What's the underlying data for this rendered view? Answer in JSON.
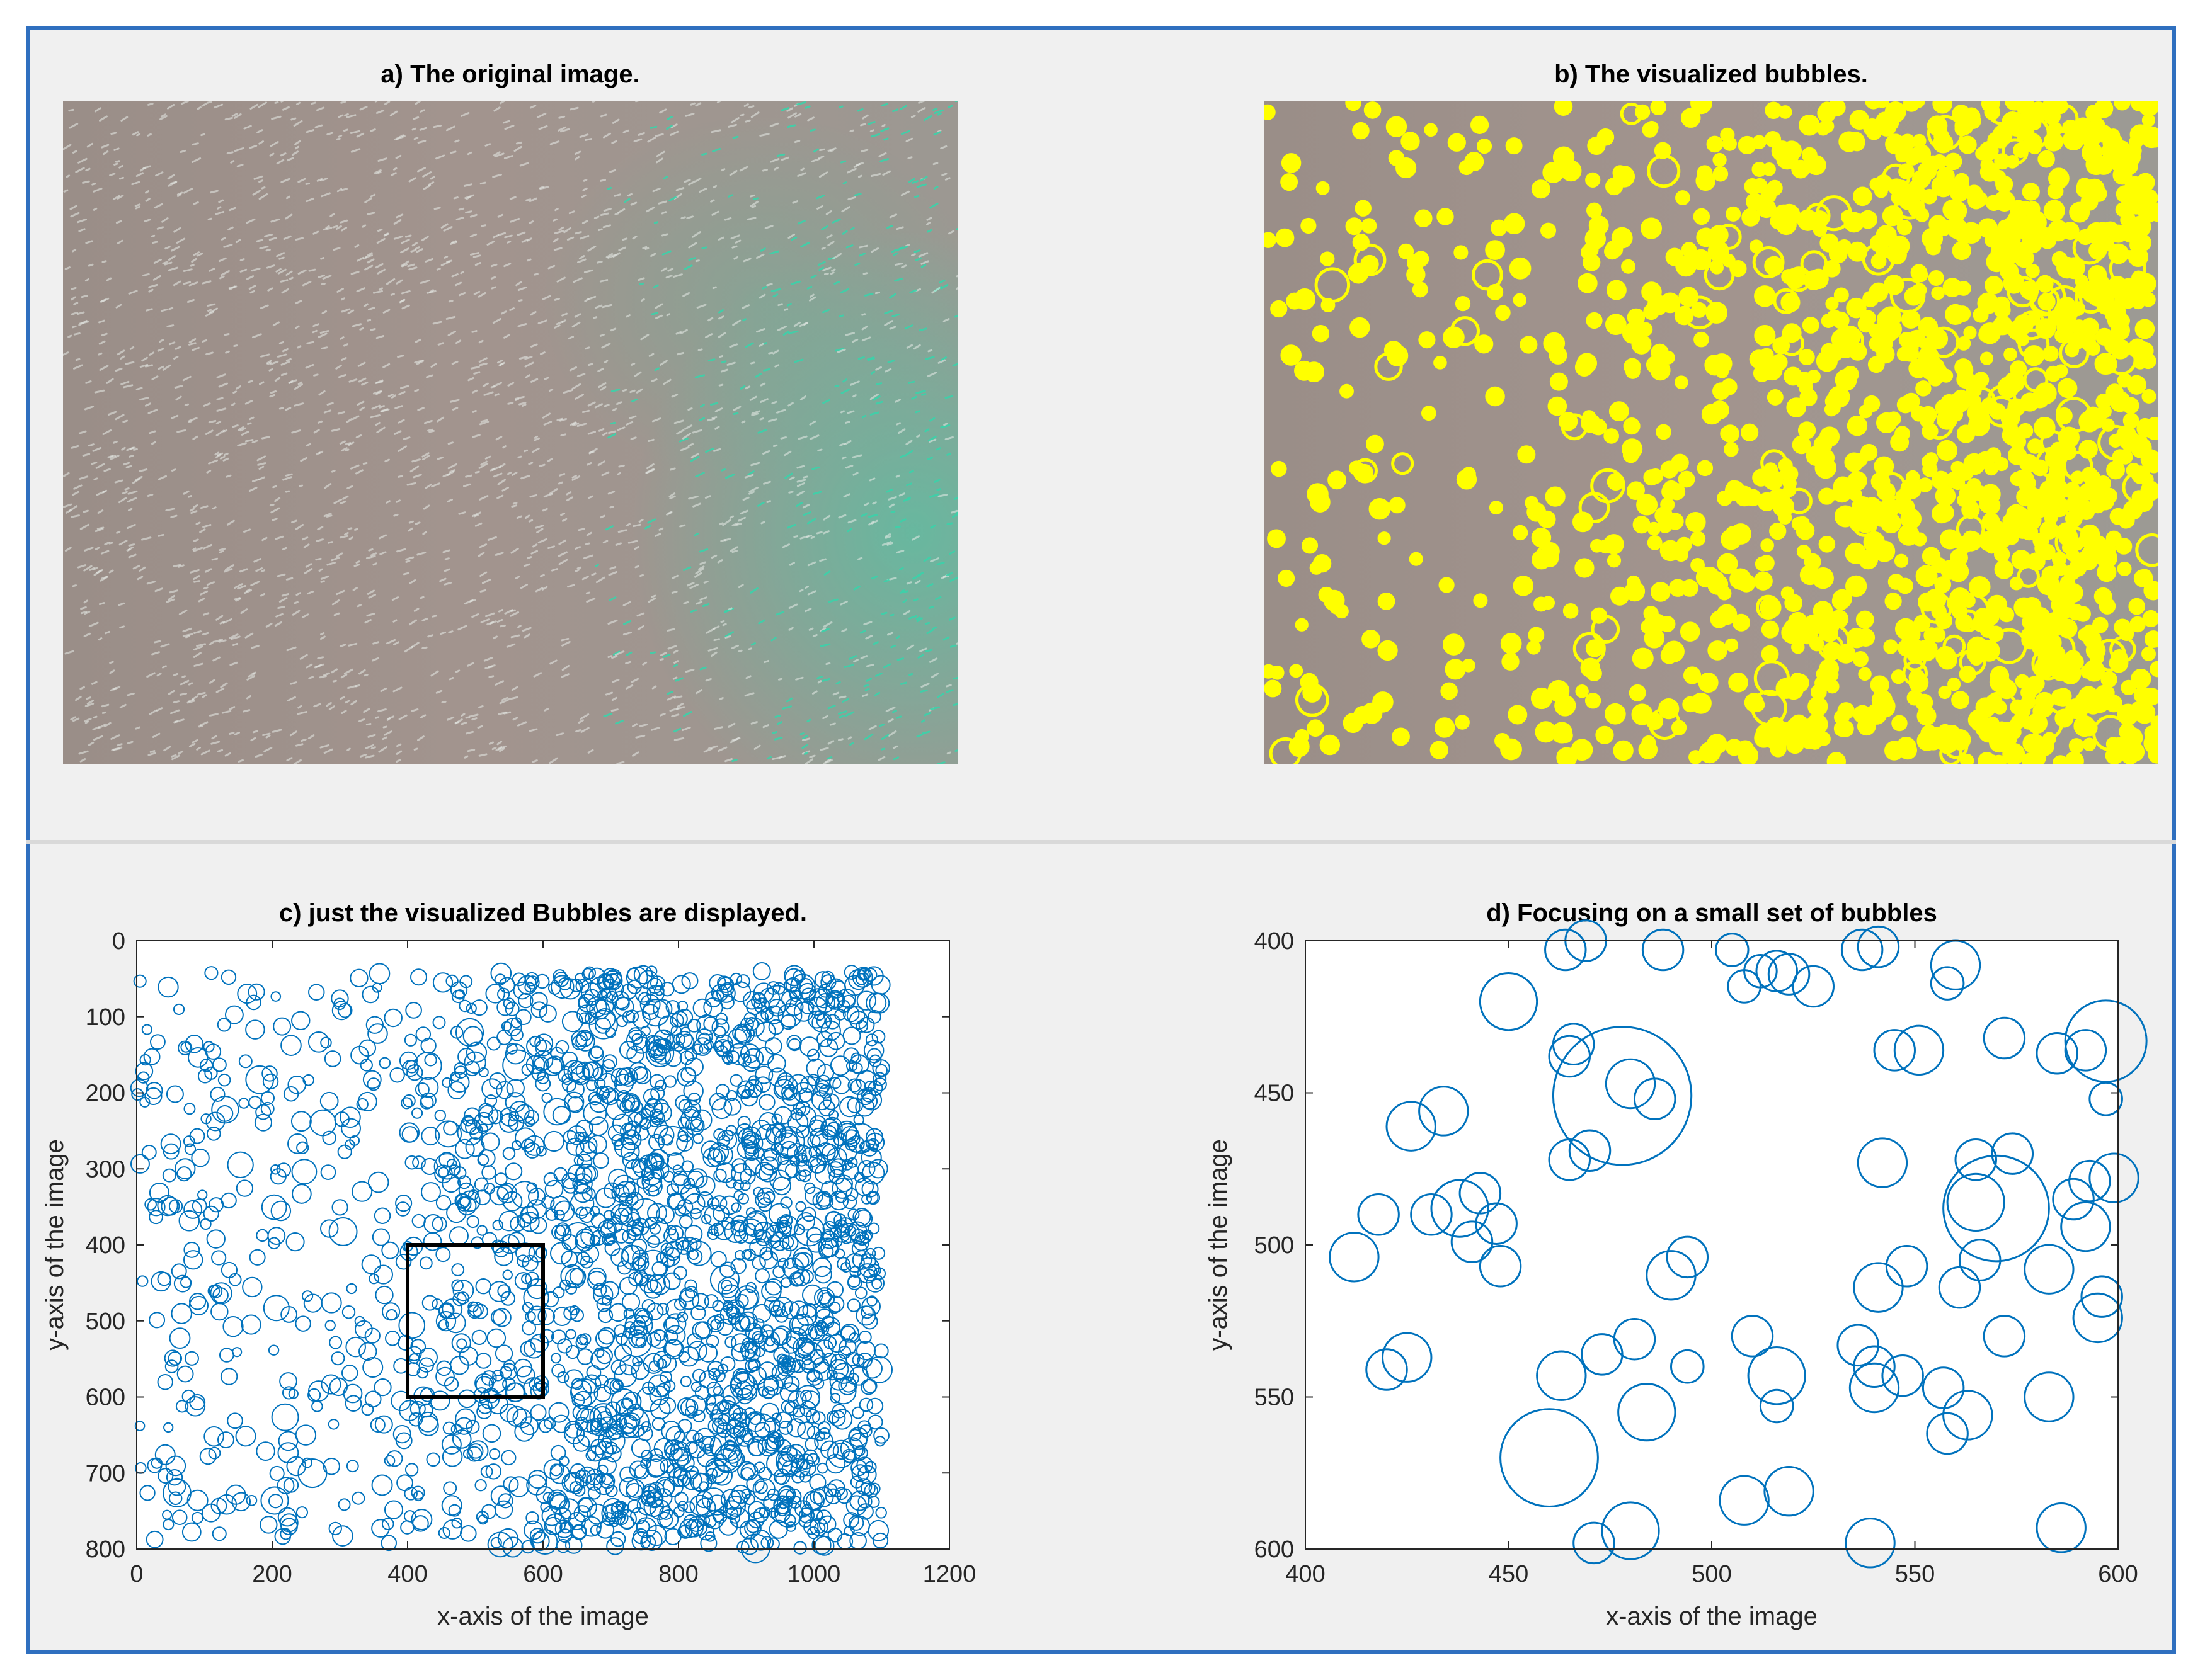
{
  "figure": {
    "panel_a_title": "a) The original image.",
    "panel_b_title": "b) The visualized bubbles.",
    "panel_c_title": "c) just the visualized Bubbles are displayed.",
    "panel_d_title": "d) Focusing on a small set of bubbles"
  },
  "colors": {
    "frame": "#2f6fbf",
    "bubble": "#0072bd",
    "bubble_overlay": "#ffff00",
    "streak": "#3cd2aa"
  },
  "chart_data": [
    {
      "type": "scatter",
      "id": "c",
      "title": "c) just the visualized Bubbles are displayed.",
      "xlabel": "x-axis of the image",
      "ylabel": "y-axis of the image",
      "xlim": [
        0,
        1200
      ],
      "ylim": [
        0,
        800
      ],
      "y_reversed": true,
      "xticks": [
        0,
        200,
        400,
        600,
        800,
        1000,
        1200
      ],
      "yticks": [
        0,
        100,
        200,
        300,
        400,
        500,
        600,
        700,
        800
      ],
      "xtick_labels": [
        "0",
        "200",
        "400",
        "600",
        "800",
        "1000",
        "1200"
      ],
      "ytick_labels": [
        "0",
        "100",
        "200",
        "300",
        "400",
        "500",
        "600",
        "700",
        "800"
      ],
      "highlight_box": {
        "x": [
          400,
          600
        ],
        "y": [
          400,
          600
        ]
      },
      "marker": "open circle",
      "bubble_count_estimate": 2200,
      "density_note": "sparse for x < 400, dense for x 700-1100"
    },
    {
      "type": "scatter",
      "id": "d",
      "title": "d) Focusing on a small set of bubbles",
      "xlabel": "x-axis of the image",
      "ylabel": "y-axis of the image",
      "xlim": [
        400,
        600
      ],
      "ylim": [
        400,
        600
      ],
      "y_reversed": true,
      "xticks": [
        400,
        450,
        500,
        550,
        600
      ],
      "yticks": [
        400,
        450,
        500,
        550,
        600
      ],
      "xtick_labels": [
        "400",
        "450",
        "500",
        "550",
        "600"
      ],
      "ytick_labels": [
        "400",
        "450",
        "500",
        "550",
        "600"
      ],
      "marker": "open circle",
      "points": [
        [
          469,
          400,
          5
        ],
        [
          464,
          403,
          5
        ],
        [
          488,
          403,
          5
        ],
        [
          505,
          403,
          4
        ],
        [
          508,
          415,
          4
        ],
        [
          512,
          410,
          4
        ],
        [
          516,
          410,
          5
        ],
        [
          519,
          411,
          5
        ],
        [
          525,
          415,
          5
        ],
        [
          537,
          403,
          5
        ],
        [
          541,
          402,
          5
        ],
        [
          558,
          414,
          4
        ],
        [
          560,
          408,
          6
        ],
        [
          450,
          420,
          7
        ],
        [
          465,
          438,
          5
        ],
        [
          466,
          434,
          5
        ],
        [
          545,
          436,
          5
        ],
        [
          551,
          436,
          6
        ],
        [
          572,
          432,
          5
        ],
        [
          585,
          437,
          5
        ],
        [
          592,
          436,
          5
        ],
        [
          597,
          433,
          10
        ],
        [
          478,
          451,
          17
        ],
        [
          480,
          447,
          6
        ],
        [
          486,
          452,
          5
        ],
        [
          426,
          461,
          6
        ],
        [
          434,
          456,
          6
        ],
        [
          597,
          452,
          4
        ],
        [
          465,
          472,
          5
        ],
        [
          470,
          469,
          5
        ],
        [
          542,
          473,
          6
        ],
        [
          565,
          472,
          5
        ],
        [
          570,
          488,
          13
        ],
        [
          574,
          470,
          5
        ],
        [
          565,
          486,
          7
        ],
        [
          599,
          478,
          6
        ],
        [
          593,
          479,
          5
        ],
        [
          418,
          490,
          5
        ],
        [
          438,
          488,
          7
        ],
        [
          443,
          483,
          5
        ],
        [
          431,
          490,
          5
        ],
        [
          441,
          499,
          5
        ],
        [
          447,
          493,
          5
        ],
        [
          448,
          507,
          5
        ],
        [
          412,
          504,
          6
        ],
        [
          494,
          504,
          5
        ],
        [
          490,
          510,
          6
        ],
        [
          592,
          494,
          6
        ],
        [
          589,
          485,
          5
        ],
        [
          566,
          505,
          5
        ],
        [
          583,
          508,
          6
        ],
        [
          561,
          514,
          5
        ],
        [
          548,
          507,
          5
        ],
        [
          541,
          514,
          6
        ],
        [
          596,
          517,
          5
        ],
        [
          595,
          524,
          6
        ],
        [
          510,
          530,
          5
        ],
        [
          516,
          543,
          7
        ],
        [
          516,
          553,
          4
        ],
        [
          536,
          533,
          5
        ],
        [
          540,
          547,
          6
        ],
        [
          540,
          540,
          5
        ],
        [
          547,
          543,
          5
        ],
        [
          557,
          547,
          5
        ],
        [
          558,
          562,
          5
        ],
        [
          563,
          556,
          6
        ],
        [
          572,
          530,
          5
        ],
        [
          473,
          536,
          5
        ],
        [
          481,
          531,
          5
        ],
        [
          494,
          540,
          4
        ],
        [
          420,
          541,
          5
        ],
        [
          425,
          537,
          6
        ],
        [
          463,
          543,
          6
        ],
        [
          484,
          555,
          7
        ],
        [
          583,
          550,
          6
        ],
        [
          460,
          570,
          12
        ],
        [
          508,
          584,
          6
        ],
        [
          519,
          581,
          6
        ],
        [
          480,
          594,
          7
        ],
        [
          471,
          598,
          5
        ],
        [
          539,
          598,
          6
        ],
        [
          586,
          593,
          6
        ]
      ]
    }
  ]
}
